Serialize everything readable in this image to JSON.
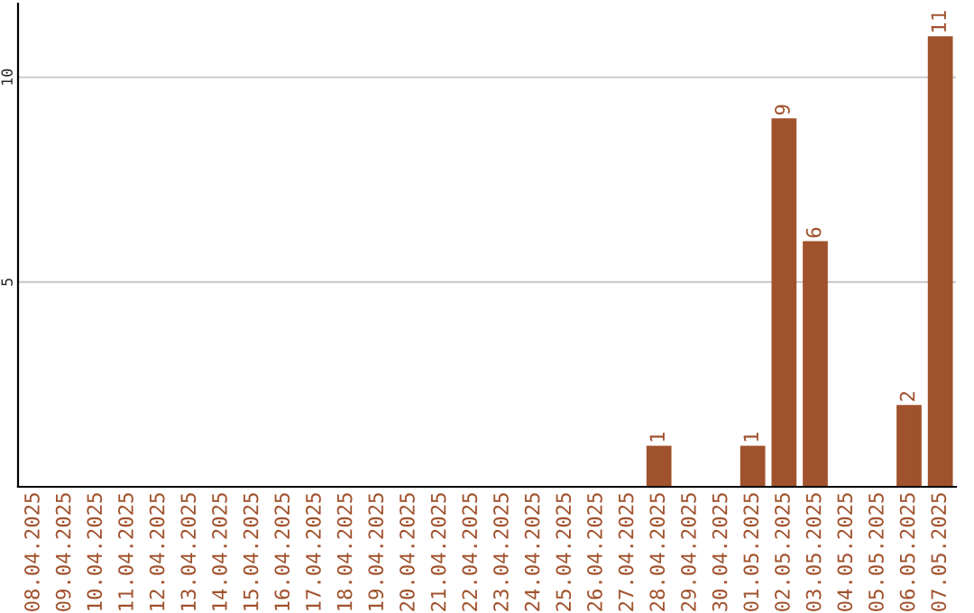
{
  "chart_data": {
    "type": "bar",
    "categories": [
      "08.04.2025",
      "09.04.2025",
      "10.04.2025",
      "11.04.2025",
      "12.04.2025",
      "13.04.2025",
      "14.04.2025",
      "15.04.2025",
      "16.04.2025",
      "17.04.2025",
      "18.04.2025",
      "19.04.2025",
      "20.04.2025",
      "21.04.2025",
      "22.04.2025",
      "23.04.2025",
      "24.04.2025",
      "25.04.2025",
      "26.04.2025",
      "27.04.2025",
      "28.04.2025",
      "29.04.2025",
      "30.04.2025",
      "01.05.2025",
      "02.05.2025",
      "03.05.2025",
      "04.05.2025",
      "05.05.2025",
      "06.05.2025",
      "07.05.2025"
    ],
    "values": [
      0,
      0,
      0,
      0,
      0,
      0,
      0,
      0,
      0,
      0,
      0,
      0,
      0,
      0,
      0,
      0,
      0,
      0,
      0,
      0,
      1,
      0,
      0,
      1,
      9,
      6,
      0,
      0,
      2,
      11
    ],
    "value_labels": [
      null,
      null,
      null,
      null,
      null,
      null,
      null,
      null,
      null,
      null,
      null,
      null,
      null,
      null,
      null,
      null,
      null,
      null,
      null,
      null,
      "1",
      null,
      null,
      "1",
      "9",
      "6",
      null,
      null,
      "2",
      "11"
    ],
    "color": "#a0522d",
    "ylim": [
      0,
      11.8
    ],
    "yticks": [
      5,
      10
    ],
    "grid": "y"
  }
}
